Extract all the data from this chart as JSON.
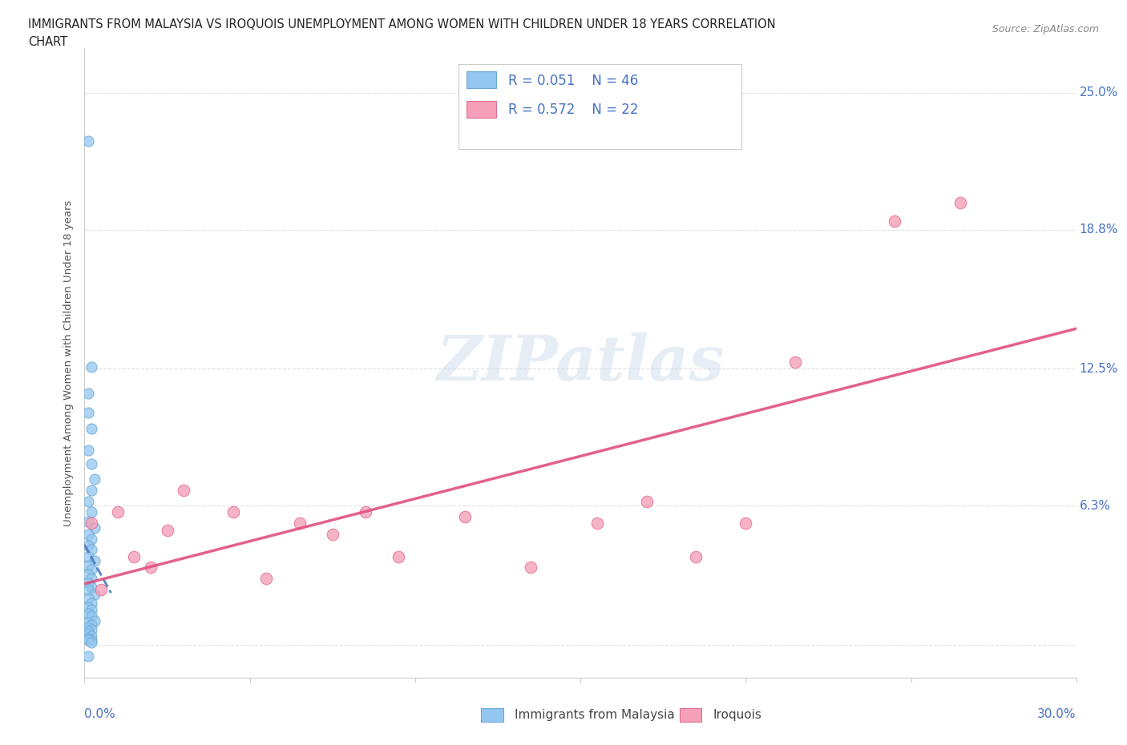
{
  "title_line1": "IMMIGRANTS FROM MALAYSIA VS IROQUOIS UNEMPLOYMENT AMONG WOMEN WITH CHILDREN UNDER 18 YEARS CORRELATION",
  "title_line2": "CHART",
  "source_text": "Source: ZipAtlas.com",
  "ylabel": "Unemployment Among Women with Children Under 18 years",
  "xmin": 0.0,
  "xmax": 0.3,
  "ymin": -0.015,
  "ymax": 0.27,
  "yticks": [
    0.0,
    0.063,
    0.125,
    0.188,
    0.25
  ],
  "ytick_labels": [
    "",
    "6.3%",
    "12.5%",
    "18.8%",
    "25.0%"
  ],
  "xticks": [
    0.0,
    0.05,
    0.1,
    0.15,
    0.2,
    0.25,
    0.3
  ],
  "grid_color": "#dddddd",
  "bg_color": "#ffffff",
  "watermark": "ZIPatlas",
  "watermark_color": "#c8d8e8",
  "series1_color": "#93c6f0",
  "series1_edge": "#6aaad4",
  "series2_color": "#f5a0b8",
  "series2_edge": "#e07090",
  "trendline1_color": "#4477bb",
  "trendline2_color": "#e05080",
  "legend_r1": "R = 0.051",
  "legend_n1": "N = 46",
  "legend_r2": "R = 0.572",
  "legend_n2": "N = 22",
  "legend_label1": "Immigrants from Malaysia",
  "legend_label2": "Iroquois",
  "axis_label_color": "#4472c4",
  "title_color": "#222222",
  "blue_scatter_x": [
    0.001,
    0.002,
    0.001,
    0.001,
    0.002,
    0.001,
    0.002,
    0.003,
    0.002,
    0.001,
    0.002,
    0.001,
    0.003,
    0.001,
    0.002,
    0.001,
    0.002,
    0.001,
    0.003,
    0.001,
    0.002,
    0.001,
    0.002,
    0.001,
    0.002,
    0.001,
    0.003,
    0.001,
    0.002,
    0.001,
    0.002,
    0.001,
    0.002,
    0.003,
    0.001,
    0.002,
    0.001,
    0.002,
    0.001,
    0.001,
    0.002,
    0.001,
    0.002,
    0.001,
    0.002,
    0.001
  ],
  "blue_scatter_y": [
    0.228,
    0.126,
    0.114,
    0.105,
    0.098,
    0.088,
    0.082,
    0.075,
    0.07,
    0.065,
    0.06,
    0.056,
    0.053,
    0.05,
    0.048,
    0.045,
    0.043,
    0.04,
    0.038,
    0.036,
    0.034,
    0.032,
    0.03,
    0.028,
    0.026,
    0.025,
    0.023,
    0.021,
    0.019,
    0.017,
    0.016,
    0.014,
    0.013,
    0.011,
    0.01,
    0.009,
    0.008,
    0.007,
    0.006,
    0.005,
    0.004,
    0.003,
    0.002,
    0.002,
    0.001,
    -0.005
  ],
  "pink_scatter_x": [
    0.002,
    0.005,
    0.01,
    0.015,
    0.02,
    0.025,
    0.03,
    0.045,
    0.055,
    0.065,
    0.075,
    0.085,
    0.095,
    0.115,
    0.135,
    0.155,
    0.17,
    0.185,
    0.2,
    0.215,
    0.245,
    0.265
  ],
  "pink_scatter_y": [
    0.055,
    0.025,
    0.06,
    0.04,
    0.035,
    0.052,
    0.07,
    0.06,
    0.03,
    0.055,
    0.05,
    0.06,
    0.04,
    0.058,
    0.035,
    0.055,
    0.065,
    0.04,
    0.055,
    0.128,
    0.192,
    0.2
  ]
}
